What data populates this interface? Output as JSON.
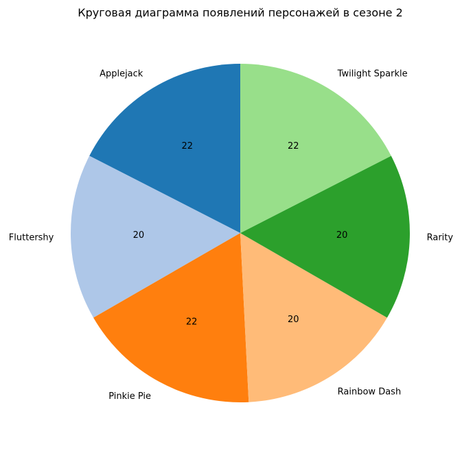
{
  "chart_data": {
    "type": "pie",
    "title": "Круговая диаграмма появлений персонажей в сезоне 2",
    "categories": [
      "Applejack",
      "Fluttershy",
      "Pinkie Pie",
      "Rainbow Dash",
      "Rarity",
      "Twilight Sparkle"
    ],
    "values": [
      22,
      20,
      22,
      20,
      20,
      22
    ],
    "value_labels": [
      "22",
      "20",
      "22",
      "20",
      "20",
      "22"
    ],
    "colors": [
      "#1f77b4",
      "#aec7e8",
      "#ff7f0e",
      "#ffbb78",
      "#2ca02c",
      "#98df8a"
    ],
    "start_angle_deg": 90,
    "direction": "counterclockwise",
    "legend": "none"
  }
}
